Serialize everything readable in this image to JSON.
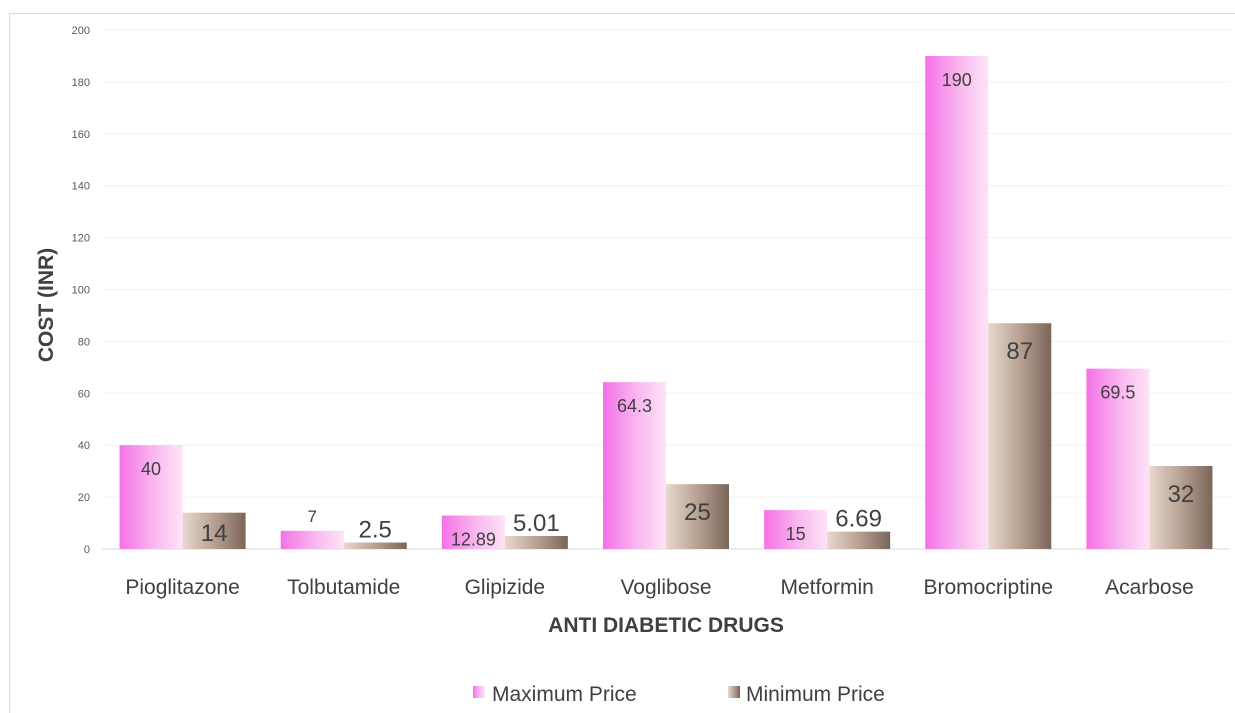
{
  "chart_data": {
    "type": "bar",
    "title": "",
    "xlabel": "ANTI DIABETIC DRUGS",
    "ylabel": "COST (INR)",
    "ylim": [
      0,
      200
    ],
    "yticks": [
      0,
      20,
      40,
      60,
      80,
      100,
      120,
      140,
      160,
      180,
      200
    ],
    "grid": true,
    "legend_position": "bottom",
    "categories": [
      "Pioglitazone",
      "Tolbutamide",
      "Glipizide",
      "Voglibose",
      "Metformin",
      "Bromocriptine",
      "Acarbose"
    ],
    "series": [
      {
        "name": "Maximum Price",
        "values": [
          40,
          7,
          12.89,
          64.3,
          15,
          190,
          69.5
        ],
        "labels": [
          "40",
          "7",
          "12.89",
          "64.3",
          "15",
          "190",
          "69.5"
        ],
        "color": "#f7a8ec"
      },
      {
        "name": "Minimum Price",
        "values": [
          14,
          2.5,
          5.01,
          25,
          6.69,
          87,
          32
        ],
        "labels": [
          "14",
          "2.5",
          "5.01",
          "25",
          "6.69",
          "87",
          "32"
        ],
        "color": "#a89385"
      }
    ]
  }
}
